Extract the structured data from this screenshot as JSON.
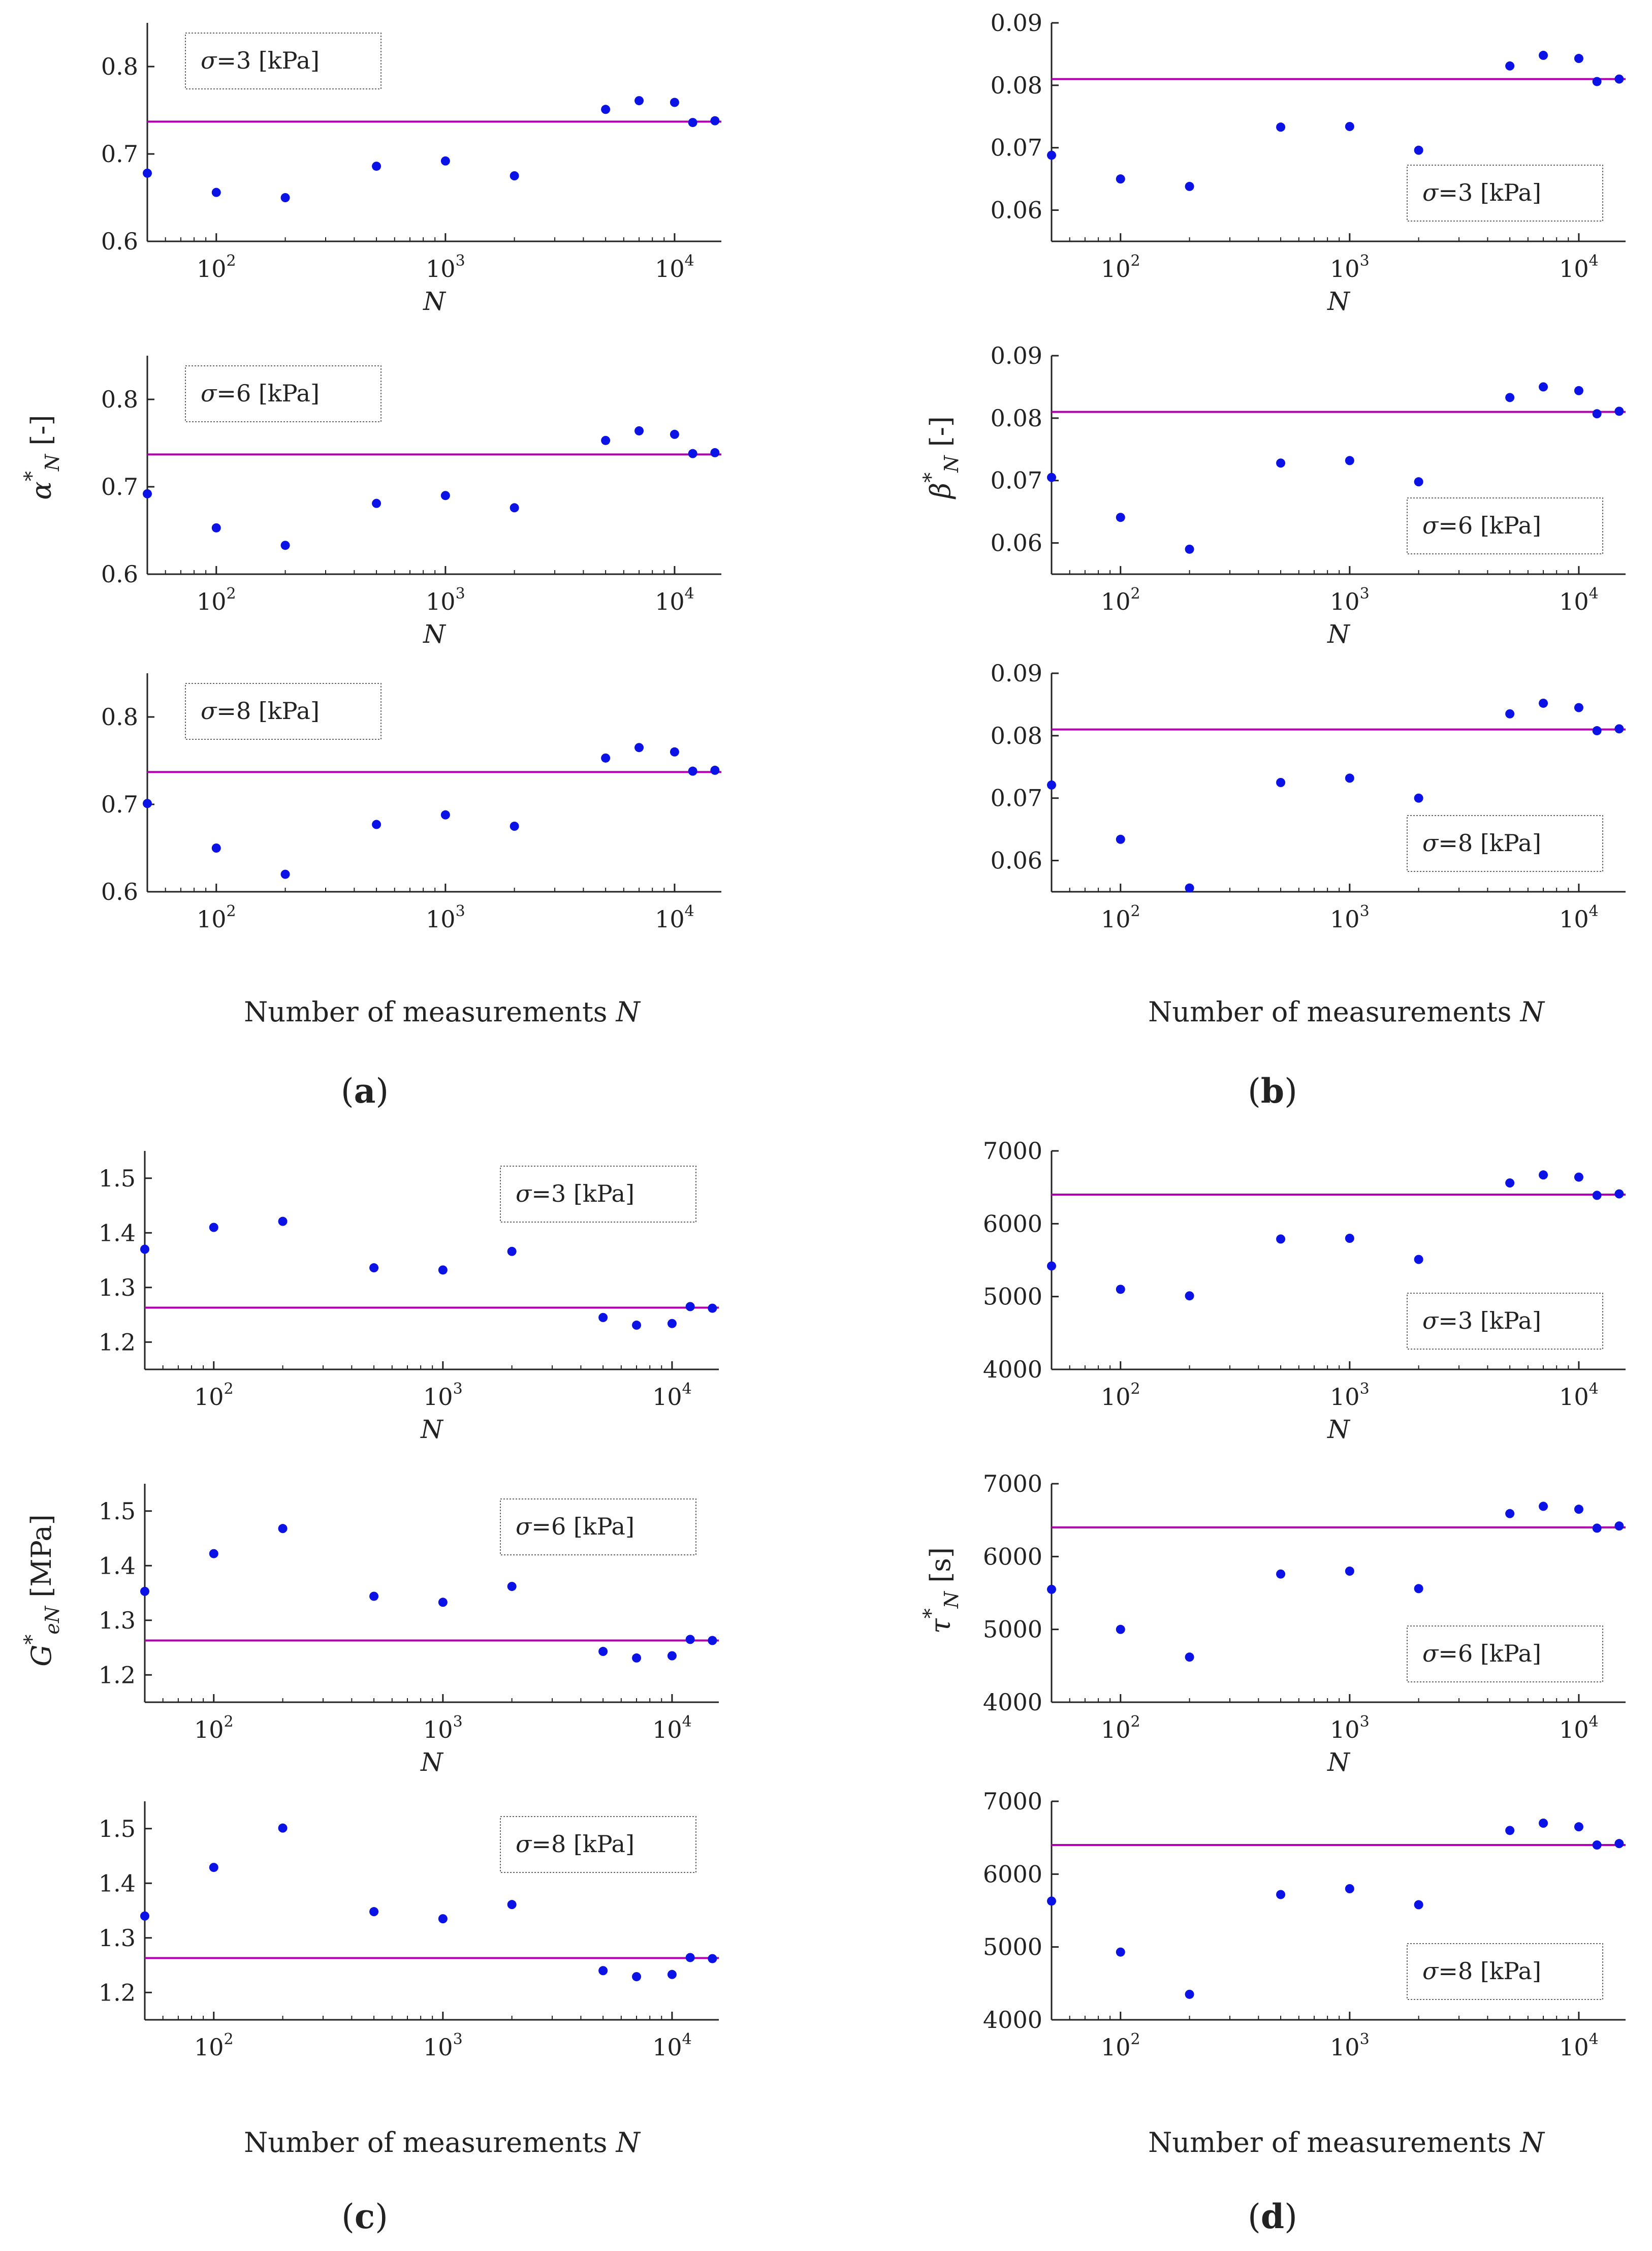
{
  "figure": {
    "panel_labels": [
      "a",
      "b",
      "c",
      "d"
    ],
    "legend_prefix": "σ=",
    "legend_units": " [kPa]",
    "sigma_values": [
      "3",
      "6",
      "8"
    ],
    "x_tick_labels": [
      "10",
      "10",
      "10"
    ],
    "x_tick_exponents": [
      "2",
      "3",
      "4"
    ],
    "n_axis_label": "N",
    "bottom_xlabel": "Number of measurements",
    "bottom_xlabel_var": "N",
    "colors": {
      "points": "#0a12e6",
      "reference_line": "#b000b0",
      "axis": "#222222"
    }
  },
  "chart_data": [
    {
      "panel": "a",
      "type": "scatter",
      "ylabel": "α*N [-]",
      "ylabel_symbol": "α",
      "ylabel_sub": "N",
      "ylabel_unit": " [-]",
      "xlabel": "Number of measurements N",
      "xscale": "log",
      "xlim": [
        50,
        16000
      ],
      "ylim": [
        0.6,
        0.85
      ],
      "yticks": [
        0.6,
        0.7,
        0.8
      ],
      "ytick_labels": [
        "0.6",
        "0.7",
        "0.8"
      ],
      "reference_line": 0.737,
      "legend_position": "top-left",
      "subplots": [
        {
          "sigma": "3",
          "x": [
            50,
            100,
            200,
            500,
            1000,
            2000,
            5000,
            7000,
            10000,
            12000,
            15000
          ],
          "y": [
            0.678,
            0.656,
            0.65,
            0.686,
            0.692,
            0.675,
            0.751,
            0.761,
            0.759,
            0.736,
            0.738
          ]
        },
        {
          "sigma": "6",
          "x": [
            50,
            100,
            200,
            500,
            1000,
            2000,
            5000,
            7000,
            10000,
            12000,
            15000
          ],
          "y": [
            0.692,
            0.653,
            0.633,
            0.681,
            0.69,
            0.676,
            0.753,
            0.764,
            0.76,
            0.738,
            0.739
          ]
        },
        {
          "sigma": "8",
          "x": [
            50,
            100,
            200,
            500,
            1000,
            2000,
            5000,
            7000,
            10000,
            12000,
            15000
          ],
          "y": [
            0.701,
            0.65,
            0.62,
            0.677,
            0.688,
            0.675,
            0.753,
            0.765,
            0.76,
            0.738,
            0.739
          ]
        }
      ]
    },
    {
      "panel": "b",
      "type": "scatter",
      "ylabel": "β*N [-]",
      "ylabel_symbol": "β",
      "ylabel_sub": "N",
      "ylabel_unit": " [-]",
      "xlabel": "Number of measurements N",
      "xscale": "log",
      "xlim": [
        50,
        16000
      ],
      "ylim": [
        0.055,
        0.09
      ],
      "yticks": [
        0.06,
        0.07,
        0.08,
        0.09
      ],
      "ytick_labels": [
        "0.06",
        "0.07",
        "0.08",
        "0.09"
      ],
      "reference_line": 0.081,
      "legend_position": "bottom-right",
      "subplots": [
        {
          "sigma": "3",
          "x": [
            50,
            100,
            200,
            500,
            1000,
            2000,
            5000,
            7000,
            10000,
            12000,
            15000
          ],
          "y": [
            0.0688,
            0.065,
            0.0638,
            0.0733,
            0.0734,
            0.0696,
            0.0831,
            0.0848,
            0.0843,
            0.0806,
            0.081
          ]
        },
        {
          "sigma": "6",
          "x": [
            50,
            100,
            200,
            500,
            1000,
            2000,
            5000,
            7000,
            10000,
            12000,
            15000
          ],
          "y": [
            0.0705,
            0.0641,
            0.059,
            0.0728,
            0.0732,
            0.0698,
            0.0833,
            0.085,
            0.0844,
            0.0807,
            0.0811
          ]
        },
        {
          "sigma": "8",
          "x": [
            50,
            100,
            200,
            500,
            1000,
            2000,
            5000,
            7000,
            10000,
            12000,
            15000
          ],
          "y": [
            0.0721,
            0.0634,
            0.0556,
            0.0725,
            0.0732,
            0.07,
            0.0835,
            0.0852,
            0.0845,
            0.0808,
            0.0811
          ]
        }
      ]
    },
    {
      "panel": "c",
      "type": "scatter",
      "ylabel": "G*eN [MPa]",
      "ylabel_symbol": "G",
      "ylabel_sub": "eN",
      "ylabel_unit": " [MPa]",
      "xlabel": "Number of measurements N",
      "xscale": "log",
      "xlim": [
        50,
        16000
      ],
      "ylim": [
        1.15,
        1.55
      ],
      "yticks": [
        1.2,
        1.3,
        1.4,
        1.5
      ],
      "ytick_labels": [
        "1.2",
        "1.3",
        "1.4",
        "1.5"
      ],
      "reference_line": 1.263,
      "legend_position": "top-right",
      "subplots": [
        {
          "sigma": "3",
          "x": [
            50,
            100,
            200,
            500,
            1000,
            2000,
            5000,
            7000,
            10000,
            12000,
            15000
          ],
          "y": [
            1.37,
            1.41,
            1.421,
            1.336,
            1.332,
            1.366,
            1.245,
            1.231,
            1.234,
            1.265,
            1.262
          ]
        },
        {
          "sigma": "6",
          "x": [
            50,
            100,
            200,
            500,
            1000,
            2000,
            5000,
            7000,
            10000,
            12000,
            15000
          ],
          "y": [
            1.353,
            1.422,
            1.468,
            1.344,
            1.333,
            1.362,
            1.243,
            1.231,
            1.235,
            1.265,
            1.263
          ]
        },
        {
          "sigma": "8",
          "x": [
            50,
            100,
            200,
            500,
            1000,
            2000,
            5000,
            7000,
            10000,
            12000,
            15000
          ],
          "y": [
            1.34,
            1.429,
            1.501,
            1.348,
            1.335,
            1.361,
            1.24,
            1.229,
            1.233,
            1.264,
            1.262
          ]
        }
      ]
    },
    {
      "panel": "d",
      "type": "scatter",
      "ylabel": "τ*N [s]",
      "ylabel_symbol": "τ",
      "ylabel_sub": "N",
      "ylabel_unit": " [s]",
      "xlabel": "Number of measurements N",
      "xscale": "log",
      "xlim": [
        50,
        16000
      ],
      "ylim": [
        4000,
        7000
      ],
      "yticks": [
        4000,
        5000,
        6000,
        7000
      ],
      "ytick_labels": [
        "4000",
        "5000",
        "6000",
        "7000"
      ],
      "reference_line": 6400,
      "legend_position": "bottom-right",
      "subplots": [
        {
          "sigma": "3",
          "x": [
            50,
            100,
            200,
            500,
            1000,
            2000,
            5000,
            7000,
            10000,
            12000,
            15000
          ],
          "y": [
            5420,
            5100,
            5010,
            5790,
            5800,
            5510,
            6560,
            6670,
            6640,
            6390,
            6410
          ]
        },
        {
          "sigma": "6",
          "x": [
            50,
            100,
            200,
            500,
            1000,
            2000,
            5000,
            7000,
            10000,
            12000,
            15000
          ],
          "y": [
            5550,
            5000,
            4620,
            5760,
            5800,
            5560,
            6590,
            6690,
            6650,
            6390,
            6420
          ]
        },
        {
          "sigma": "8",
          "x": [
            50,
            100,
            200,
            500,
            1000,
            2000,
            5000,
            7000,
            10000,
            12000,
            15000
          ],
          "y": [
            5630,
            4930,
            4350,
            5720,
            5800,
            5580,
            6600,
            6700,
            6650,
            6400,
            6420
          ]
        }
      ]
    }
  ]
}
